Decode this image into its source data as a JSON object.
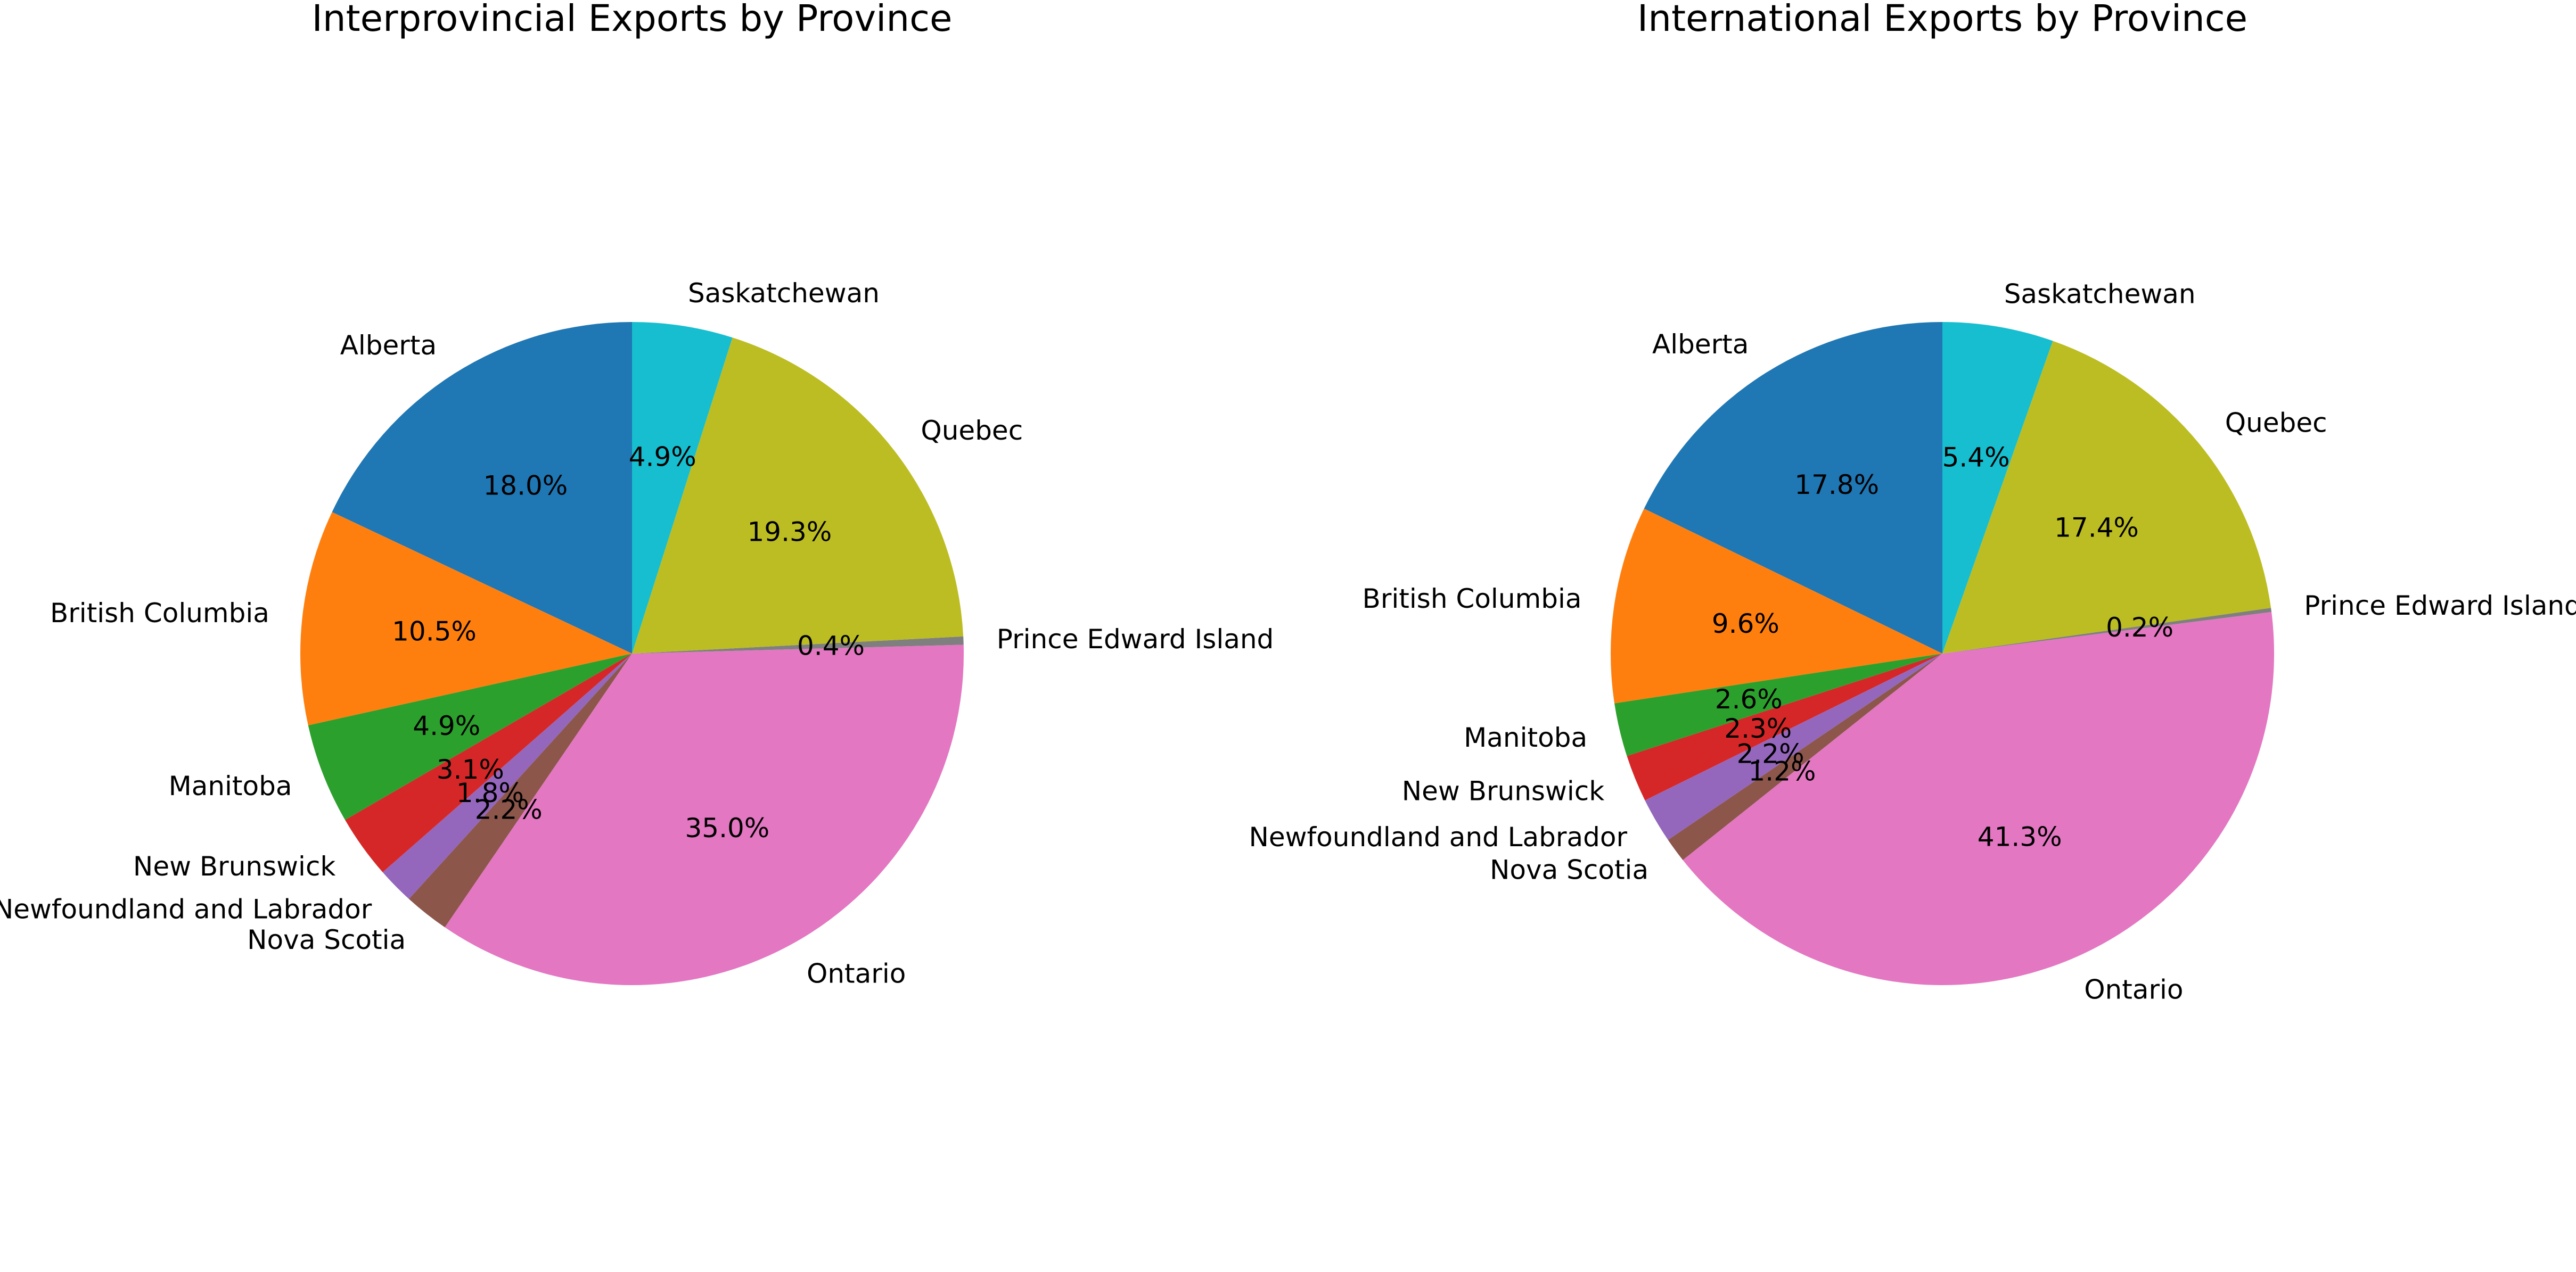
{
  "chart_data": [
    {
      "type": "pie",
      "title": "Interprovincial Exports by Province",
      "start_angle_deg": 90,
      "direction": "counterclockwise",
      "slices": [
        {
          "label": "Alberta",
          "value": 18.0,
          "pct_label": "18.0%",
          "color": "#1f77b4"
        },
        {
          "label": "British Columbia",
          "value": 10.5,
          "pct_label": "10.5%",
          "color": "#ff7f0e"
        },
        {
          "label": "Manitoba",
          "value": 4.9,
          "pct_label": "4.9%",
          "color": "#2ca02c"
        },
        {
          "label": "New Brunswick",
          "value": 3.1,
          "pct_label": "3.1%",
          "color": "#d62728"
        },
        {
          "label": "Newfoundland and Labrador",
          "value": 1.8,
          "pct_label": "1.8%",
          "color": "#9467bd"
        },
        {
          "label": "Nova Scotia",
          "value": 2.2,
          "pct_label": "2.2%",
          "color": "#8c564b"
        },
        {
          "label": "Ontario",
          "value": 35.0,
          "pct_label": "35.0%",
          "color": "#e377c2"
        },
        {
          "label": "Prince Edward Island",
          "value": 0.4,
          "pct_label": "0.4%",
          "color": "#7f7f7f"
        },
        {
          "label": "Quebec",
          "value": 19.3,
          "pct_label": "19.3%",
          "color": "#bcbd22"
        },
        {
          "label": "Saskatchewan",
          "value": 4.9,
          "pct_label": "4.9%",
          "color": "#17becf"
        }
      ]
    },
    {
      "type": "pie",
      "title": "International Exports by Province",
      "start_angle_deg": 90,
      "direction": "counterclockwise",
      "slices": [
        {
          "label": "Alberta",
          "value": 17.8,
          "pct_label": "17.8%",
          "color": "#1f77b4"
        },
        {
          "label": "British Columbia",
          "value": 9.6,
          "pct_label": "9.6%",
          "color": "#ff7f0e"
        },
        {
          "label": "Manitoba",
          "value": 2.6,
          "pct_label": "2.6%",
          "color": "#2ca02c"
        },
        {
          "label": "New Brunswick",
          "value": 2.3,
          "pct_label": "2.3%",
          "color": "#d62728"
        },
        {
          "label": "Newfoundland and Labrador",
          "value": 2.2,
          "pct_label": "2.2%",
          "color": "#9467bd"
        },
        {
          "label": "Nova Scotia",
          "value": 1.2,
          "pct_label": "1.2%",
          "color": "#8c564b"
        },
        {
          "label": "Ontario",
          "value": 41.3,
          "pct_label": "41.3%",
          "color": "#e377c2"
        },
        {
          "label": "Prince Edward Island",
          "value": 0.2,
          "pct_label": "0.2%",
          "color": "#7f7f7f"
        },
        {
          "label": "Quebec",
          "value": 17.4,
          "pct_label": "17.4%",
          "color": "#bcbd22"
        },
        {
          "label": "Saskatchewan",
          "value": 5.4,
          "pct_label": "5.4%",
          "color": "#17becf"
        }
      ]
    }
  ]
}
